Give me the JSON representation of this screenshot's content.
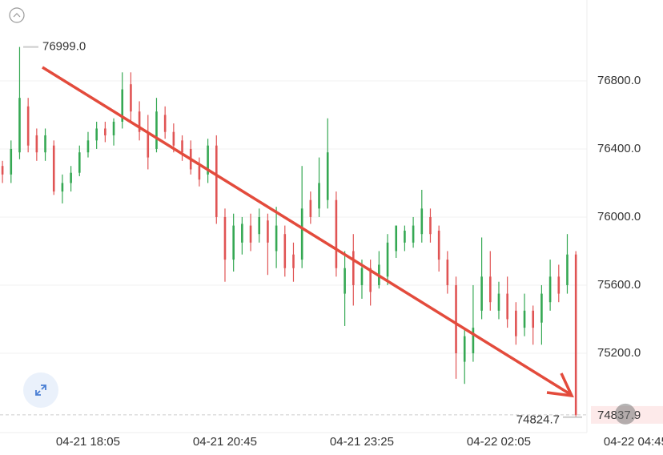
{
  "chart_data": {
    "type": "candlestick",
    "up_color": "#35a853",
    "down_color": "#e05454",
    "categories": [
      null,
      null,
      null,
      null,
      null,
      null,
      null,
      null,
      null,
      null,
      null,
      null,
      null,
      null,
      null,
      null,
      null,
      null,
      null,
      null,
      null,
      null,
      null,
      null,
      null,
      null,
      null,
      null,
      null,
      null,
      null,
      null,
      null,
      null,
      null,
      null,
      null,
      null,
      null,
      null,
      null,
      null,
      null,
      null,
      null,
      null,
      null,
      null,
      null,
      null,
      null,
      null,
      null,
      null,
      null,
      null,
      null,
      null,
      null,
      null,
      null,
      null,
      null,
      null,
      null,
      null,
      null,
      null
    ],
    "open": [
      76300,
      76250,
      76380,
      76650,
      76480,
      76380,
      76420,
      76150,
      76200,
      76260,
      76380,
      76450,
      76520,
      76480,
      76560,
      76780,
      76620,
      76500,
      76400,
      76600,
      76500,
      76450,
      76400,
      76300,
      76250,
      76420,
      76000,
      75750,
      75850,
      75950,
      75900,
      75980,
      75800,
      75900,
      75780,
      75750,
      76100,
      76050,
      76100,
      76100,
      75550,
      75800,
      75600,
      75700,
      75600,
      75650,
      75800,
      75850,
      75850,
      75900,
      76000,
      75920,
      75750,
      75600,
      75150,
      75200,
      75450,
      75650,
      75450,
      75550,
      75450,
      75350,
      75450,
      75380,
      75500,
      75650,
      75600,
      75780
    ],
    "high": [
      76330,
      76450,
      76999,
      76700,
      76520,
      76520,
      76450,
      76250,
      76300,
      76420,
      76500,
      76560,
      76560,
      76580,
      76850,
      76850,
      76680,
      76600,
      76700,
      76650,
      76550,
      76480,
      76450,
      76350,
      76460,
      76480,
      76050,
      76020,
      76000,
      76020,
      76050,
      76020,
      76060,
      75950,
      75850,
      76300,
      76150,
      76350,
      76580,
      76150,
      75800,
      75900,
      75750,
      75750,
      75800,
      75900,
      75950,
      75950,
      76000,
      76160,
      76050,
      75950,
      75800,
      75650,
      75350,
      75600,
      75880,
      75800,
      75620,
      75650,
      75500,
      75550,
      75480,
      75600,
      75750,
      75720,
      75900,
      75800
    ],
    "low": [
      76200,
      76200,
      76340,
      76380,
      76330,
      76330,
      76130,
      76080,
      76150,
      76240,
      76350,
      76400,
      76440,
      76420,
      76520,
      76560,
      76450,
      76280,
      76380,
      76460,
      76380,
      76330,
      76250,
      76180,
      76200,
      75960,
      75620,
      75680,
      75780,
      75800,
      75850,
      75660,
      75700,
      75650,
      75620,
      75700,
      75960,
      76000,
      76050,
      75650,
      75360,
      75480,
      75520,
      75480,
      75580,
      75600,
      75760,
      75800,
      75820,
      75850,
      75850,
      75680,
      75550,
      75050,
      75020,
      75150,
      75400,
      75450,
      75400,
      75350,
      75250,
      75300,
      75250,
      75250,
      75450,
      75500,
      75550,
      74824.7
    ],
    "close": [
      76250,
      76400,
      76700,
      76420,
      76380,
      76480,
      76150,
      76200,
      76260,
      76380,
      76450,
      76520,
      76480,
      76560,
      76750,
      76620,
      76500,
      76350,
      76620,
      76500,
      76420,
      76380,
      76280,
      76220,
      76420,
      76000,
      75750,
      75950,
      75960,
      75850,
      76000,
      75850,
      75950,
      75700,
      75700,
      76050,
      76000,
      76200,
      76380,
      75700,
      75700,
      75600,
      75700,
      75560,
      75720,
      75850,
      75950,
      75920,
      75950,
      76050,
      75900,
      75750,
      75600,
      75200,
      75300,
      75350,
      75650,
      75500,
      75550,
      75400,
      75300,
      75450,
      75350,
      75550,
      75650,
      75550,
      75780,
      74837.9
    ],
    "xticks": [
      {
        "value": 10,
        "label": "04-21 18:05"
      },
      {
        "value": 26,
        "label": "04-21 20:45"
      },
      {
        "value": 42,
        "label": "04-21 23:25"
      },
      {
        "value": 58,
        "label": "04-22 02:05"
      },
      {
        "value": 74,
        "label": "04-22 04:45"
      }
    ],
    "ylim": [
      74734,
      77275
    ],
    "yticks": [
      {
        "value": 75200,
        "label": "75200.0"
      },
      {
        "value": 75600,
        "label": "75600.0"
      },
      {
        "value": 76000,
        "label": "76000.0"
      },
      {
        "value": 76400,
        "label": "76400.0"
      },
      {
        "value": 76800,
        "label": "76800.0"
      }
    ],
    "grid": true,
    "high_marker": {
      "value": 76999,
      "label": "76999.0"
    },
    "low_marker": 74824.7,
    "last_price": 74837.9
  }
}
